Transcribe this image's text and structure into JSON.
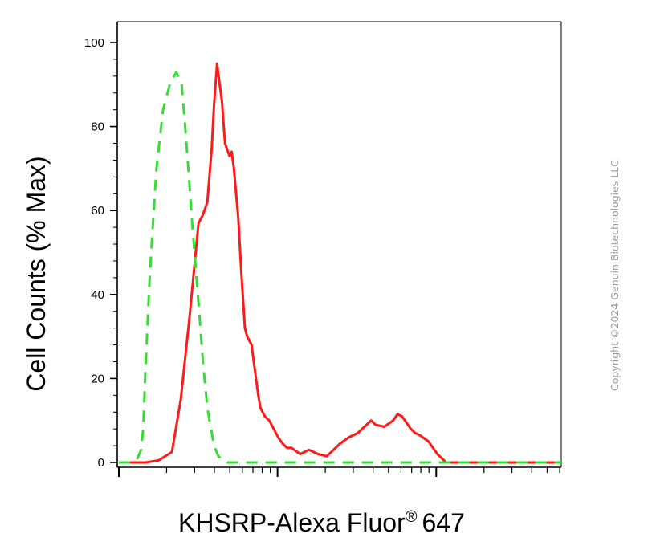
{
  "chart_data": {
    "type": "line",
    "title": "",
    "ylabel": "Cell Counts (% Max)",
    "xlabel": {
      "main": "KHSRP-Alexa Fluor",
      "registered_mark": "®",
      "suffix": "647"
    },
    "y_ticks": [
      "0",
      "20",
      "40",
      "60",
      "80",
      "100"
    ],
    "ylim": [
      0,
      105
    ],
    "x_scale": "log",
    "x_tick_labels_shown": false,
    "series": [
      {
        "line_style": "solid",
        "color": "#ff1a1a",
        "x": [
          0.0,
          0.06,
          0.09,
          0.12,
          0.14,
          0.16,
          0.18,
          0.19,
          0.2,
          0.21,
          0.215,
          0.222,
          0.228,
          0.233,
          0.24,
          0.25,
          0.255,
          0.26,
          0.27,
          0.277,
          0.285,
          0.29,
          0.3,
          0.31,
          0.315,
          0.32,
          0.33,
          0.34,
          0.35,
          0.36,
          0.37,
          0.38,
          0.39,
          0.41,
          0.43,
          0.45,
          0.47,
          0.49,
          0.5,
          0.52,
          0.54,
          0.56,
          0.57,
          0.58,
          0.6,
          0.62,
          0.63,
          0.64,
          0.66,
          0.67,
          0.68,
          0.7,
          0.71,
          0.72,
          0.73,
          0.74,
          0.76,
          0.78,
          0.8,
          0.84,
          0.9,
          1.0
        ],
        "y": [
          0,
          0,
          0.5,
          2.5,
          15,
          35,
          57,
          59,
          62,
          75,
          85,
          95,
          90,
          86,
          76,
          73,
          74,
          70,
          58,
          45,
          32,
          30,
          28,
          20,
          16,
          13,
          11,
          10,
          8,
          6,
          4.5,
          3.5,
          3.5,
          2,
          3,
          2,
          1.5,
          3.5,
          4.5,
          6,
          7,
          9,
          10,
          9,
          8.5,
          10,
          11.5,
          11,
          8,
          7,
          6.5,
          5,
          3.5,
          2,
          1,
          0,
          0,
          0,
          0,
          0,
          0,
          0
        ]
      },
      {
        "line_style": "dashed",
        "color": "#33dd33",
        "x": [
          0.0,
          0.03,
          0.04,
          0.05,
          0.055,
          0.06,
          0.07,
          0.085,
          0.1,
          0.115,
          0.13,
          0.142,
          0.15,
          0.157,
          0.165,
          0.18,
          0.19,
          0.2,
          0.215,
          0.225,
          0.235,
          0.245,
          0.26,
          0.3,
          0.4,
          0.5,
          0.6,
          0.7,
          0.8,
          0.9,
          1.0
        ],
        "y": [
          0,
          0,
          0.5,
          3,
          8,
          22,
          45,
          70,
          84,
          90,
          93,
          90,
          80,
          70,
          58,
          38,
          24,
          13,
          4,
          1.5,
          0.5,
          0,
          0,
          0,
          0,
          0,
          0,
          0,
          0,
          0,
          0
        ]
      }
    ]
  },
  "watermark": "Copyright ©2024 Genuin Biotechnologies LLC"
}
